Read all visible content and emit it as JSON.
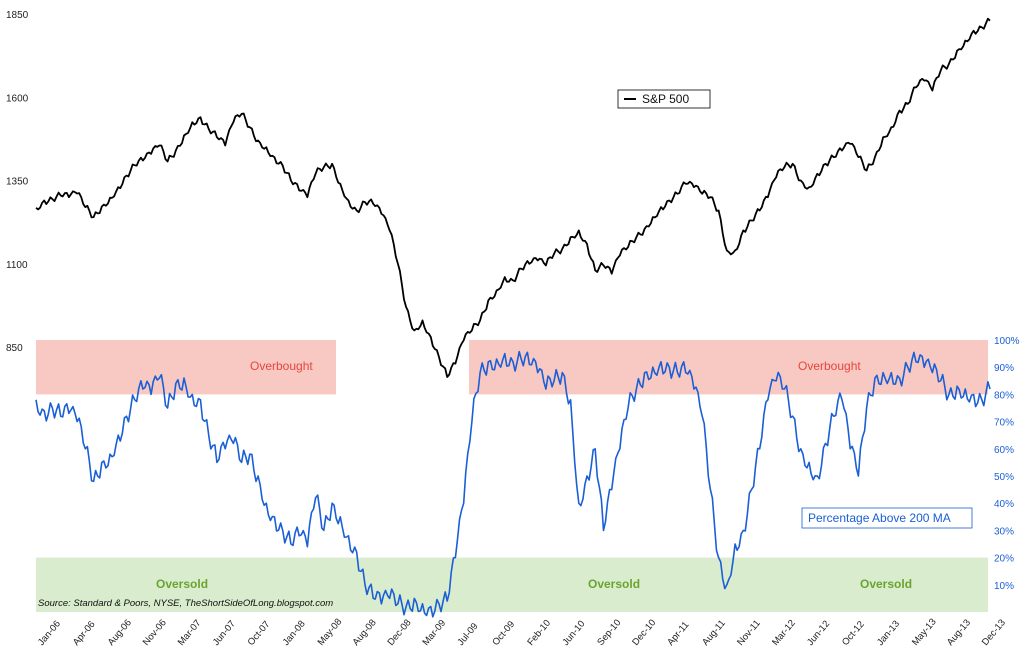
{
  "chart_data": {
    "type": "line",
    "title": "",
    "x_labels": [
      "Jan-06",
      "Apr-06",
      "Aug-06",
      "Nov-06",
      "Mar-07",
      "Jun-07",
      "Oct-07",
      "Jan-08",
      "May-08",
      "Aug-08",
      "Dec-08",
      "Mar-09",
      "Jul-09",
      "Oct-09",
      "Feb-10",
      "Jun-10",
      "Sep-10",
      "Dec-10",
      "Apr-11",
      "Aug-11",
      "Nov-11",
      "Mar-12",
      "Jun-12",
      "Oct-12",
      "Jan-13",
      "May-13",
      "Aug-13",
      "Dec-13"
    ],
    "left_axis": {
      "ticks": [
        "1850",
        "1600",
        "1350",
        "1100",
        "850"
      ],
      "range": [
        850,
        1850
      ]
    },
    "right_axis": {
      "ticks": [
        "100%",
        "90%",
        "80%",
        "70%",
        "60%",
        "50%",
        "40%",
        "30%",
        "20%",
        "10%"
      ],
      "range": [
        0,
        100
      ]
    },
    "zones": [
      {
        "name": "Overbought",
        "from": 80,
        "to": 100,
        "label_count": 2,
        "color": "#f8c8c3"
      },
      {
        "name": "Oversold",
        "from": 0,
        "to": 20,
        "label_count": 3,
        "color": "#d9eccd"
      }
    ],
    "zone_labels": {
      "overbought": "Overbought",
      "oversold": "Oversold"
    },
    "series": [
      {
        "name": "S&P 500",
        "axis": "left",
        "color": "#000000",
        "values": [
          [
            0,
            1268
          ],
          [
            1,
            1290
          ],
          [
            2,
            1294
          ],
          [
            3,
            1305
          ],
          [
            4,
            1300
          ],
          [
            5,
            1311
          ],
          [
            6,
            1270
          ],
          [
            7,
            1240
          ],
          [
            8,
            1272
          ],
          [
            9,
            1298
          ],
          [
            10,
            1330
          ],
          [
            11,
            1365
          ],
          [
            12,
            1396
          ],
          [
            13,
            1410
          ],
          [
            14,
            1430
          ],
          [
            15,
            1455
          ],
          [
            16,
            1407
          ],
          [
            17,
            1440
          ],
          [
            18,
            1485
          ],
          [
            19,
            1525
          ],
          [
            20,
            1540
          ],
          [
            21,
            1505
          ],
          [
            22,
            1480
          ],
          [
            23,
            1455
          ],
          [
            24,
            1525
          ],
          [
            25,
            1550
          ],
          [
            26,
            1510
          ],
          [
            27,
            1470
          ],
          [
            28,
            1450
          ],
          [
            29,
            1420
          ],
          [
            30,
            1395
          ],
          [
            31,
            1350
          ],
          [
            32,
            1320
          ],
          [
            33,
            1300
          ],
          [
            34,
            1370
          ],
          [
            35,
            1390
          ],
          [
            36,
            1400
          ],
          [
            37,
            1340
          ],
          [
            38,
            1290
          ],
          [
            39,
            1260
          ],
          [
            40,
            1285
          ],
          [
            41,
            1280
          ],
          [
            42,
            1250
          ],
          [
            43,
            1200
          ],
          [
            44,
            1100
          ],
          [
            45,
            970
          ],
          [
            46,
            900
          ],
          [
            47,
            930
          ],
          [
            48,
            880
          ],
          [
            49,
            820
          ],
          [
            50,
            760
          ],
          [
            51,
            800
          ],
          [
            52,
            870
          ],
          [
            53,
            900
          ],
          [
            54,
            930
          ],
          [
            55,
            990
          ],
          [
            56,
            1020
          ],
          [
            57,
            1060
          ],
          [
            58,
            1050
          ],
          [
            59,
            1085
          ],
          [
            60,
            1100
          ],
          [
            61,
            1110
          ],
          [
            62,
            1095
          ],
          [
            63,
            1130
          ],
          [
            64,
            1145
          ],
          [
            65,
            1180
          ],
          [
            66,
            1200
          ],
          [
            67,
            1160
          ],
          [
            68,
            1080
          ],
          [
            69,
            1095
          ],
          [
            70,
            1070
          ],
          [
            71,
            1125
          ],
          [
            72,
            1150
          ],
          [
            73,
            1180
          ],
          [
            74,
            1205
          ],
          [
            75,
            1240
          ],
          [
            76,
            1270
          ],
          [
            77,
            1290
          ],
          [
            78,
            1310
          ],
          [
            79,
            1340
          ],
          [
            80,
            1330
          ],
          [
            81,
            1310
          ],
          [
            82,
            1300
          ],
          [
            83,
            1260
          ],
          [
            84,
            1140
          ],
          [
            85,
            1140
          ],
          [
            86,
            1200
          ],
          [
            87,
            1230
          ],
          [
            88,
            1260
          ],
          [
            89,
            1300
          ],
          [
            90,
            1360
          ],
          [
            91,
            1390
          ],
          [
            92,
            1400
          ],
          [
            93,
            1350
          ],
          [
            94,
            1330
          ],
          [
            95,
            1370
          ],
          [
            96,
            1400
          ],
          [
            97,
            1420
          ],
          [
            98,
            1440
          ],
          [
            99,
            1460
          ],
          [
            100,
            1420
          ],
          [
            101,
            1380
          ],
          [
            102,
            1420
          ],
          [
            103,
            1480
          ],
          [
            104,
            1510
          ],
          [
            105,
            1560
          ],
          [
            106,
            1580
          ],
          [
            107,
            1630
          ],
          [
            108,
            1650
          ],
          [
            109,
            1620
          ],
          [
            110,
            1680
          ],
          [
            111,
            1700
          ],
          [
            112,
            1740
          ],
          [
            113,
            1770
          ],
          [
            114,
            1800
          ],
          [
            115,
            1810
          ],
          [
            116,
            1830
          ]
        ]
      },
      {
        "name": "Percentage Above 200 MA",
        "axis": "right",
        "color": "#1a5fd6",
        "values": [
          [
            0,
            78
          ],
          [
            1,
            74
          ],
          [
            2,
            75
          ],
          [
            3,
            72
          ],
          [
            4,
            73
          ],
          [
            5,
            70
          ],
          [
            6,
            60
          ],
          [
            7,
            48
          ],
          [
            8,
            55
          ],
          [
            9,
            58
          ],
          [
            10,
            65
          ],
          [
            11,
            72
          ],
          [
            12,
            78
          ],
          [
            13,
            82
          ],
          [
            14,
            80
          ],
          [
            15,
            86
          ],
          [
            16,
            75
          ],
          [
            17,
            84
          ],
          [
            18,
            86
          ],
          [
            19,
            80
          ],
          [
            20,
            78
          ],
          [
            21,
            65
          ],
          [
            22,
            55
          ],
          [
            23,
            60
          ],
          [
            24,
            62
          ],
          [
            25,
            55
          ],
          [
            26,
            58
          ],
          [
            27,
            50
          ],
          [
            28,
            40
          ],
          [
            29,
            35
          ],
          [
            30,
            30
          ],
          [
            31,
            25
          ],
          [
            32,
            28
          ],
          [
            33,
            24
          ],
          [
            34,
            42
          ],
          [
            35,
            30
          ],
          [
            36,
            40
          ],
          [
            37,
            35
          ],
          [
            38,
            28
          ],
          [
            39,
            22
          ],
          [
            40,
            10
          ],
          [
            41,
            5
          ],
          [
            42,
            3
          ],
          [
            43,
            5
          ],
          [
            44,
            3
          ],
          [
            45,
            2
          ],
          [
            46,
            5
          ],
          [
            47,
            3
          ],
          [
            48,
            2
          ],
          [
            49,
            3
          ],
          [
            50,
            4
          ],
          [
            51,
            20
          ],
          [
            52,
            40
          ],
          [
            53,
            70
          ],
          [
            54,
            88
          ],
          [
            55,
            92
          ],
          [
            56,
            93
          ],
          [
            57,
            95
          ],
          [
            58,
            92
          ],
          [
            59,
            93
          ],
          [
            60,
            91
          ],
          [
            61,
            88
          ],
          [
            62,
            82
          ],
          [
            63,
            85
          ],
          [
            64,
            88
          ],
          [
            65,
            78
          ],
          [
            66,
            40
          ],
          [
            67,
            50
          ],
          [
            68,
            60
          ],
          [
            69,
            30
          ],
          [
            70,
            45
          ],
          [
            71,
            60
          ],
          [
            72,
            75
          ],
          [
            73,
            82
          ],
          [
            74,
            88
          ],
          [
            75,
            90
          ],
          [
            76,
            92
          ],
          [
            77,
            90
          ],
          [
            78,
            88
          ],
          [
            79,
            88
          ],
          [
            80,
            82
          ],
          [
            81,
            72
          ],
          [
            82,
            45
          ],
          [
            83,
            20
          ],
          [
            84,
            10
          ],
          [
            85,
            25
          ],
          [
            86,
            30
          ],
          [
            87,
            45
          ],
          [
            88,
            60
          ],
          [
            89,
            78
          ],
          [
            90,
            85
          ],
          [
            91,
            82
          ],
          [
            92,
            72
          ],
          [
            93,
            60
          ],
          [
            94,
            55
          ],
          [
            95,
            50
          ],
          [
            96,
            62
          ],
          [
            97,
            72
          ],
          [
            98,
            78
          ],
          [
            99,
            60
          ],
          [
            100,
            50
          ],
          [
            101,
            75
          ],
          [
            102,
            86
          ],
          [
            103,
            88
          ],
          [
            104,
            88
          ],
          [
            105,
            86
          ],
          [
            106,
            90
          ],
          [
            107,
            92
          ],
          [
            108,
            90
          ],
          [
            109,
            88
          ],
          [
            110,
            85
          ],
          [
            111,
            80
          ],
          [
            112,
            83
          ],
          [
            113,
            82
          ],
          [
            114,
            80
          ],
          [
            115,
            78
          ],
          [
            116,
            82
          ]
        ]
      }
    ],
    "legends": {
      "sp500": "S&P 500",
      "pct": "Percentage Above 200 MA"
    },
    "source": "Source: Standard & Poors, NYSE, TheShortSideOfLong.blogspot.com"
  }
}
